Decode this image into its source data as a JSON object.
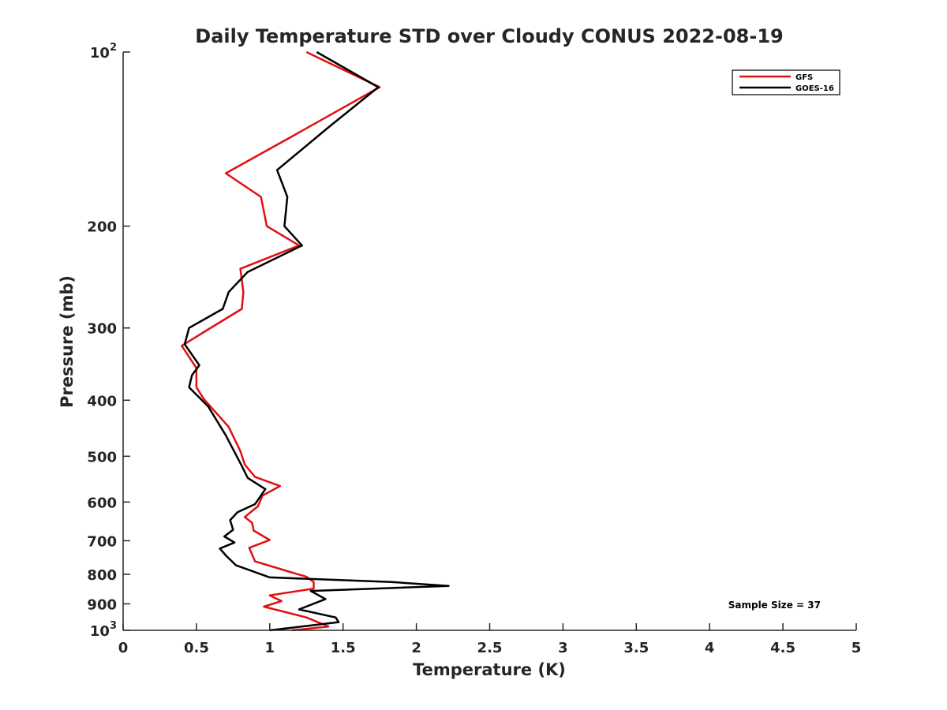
{
  "chart_data": {
    "type": "line",
    "title": "Daily Temperature STD over Cloudy CONUS 2022-08-19",
    "xlabel": "Temperature (K)",
    "ylabel": "Pressure (mb)",
    "xlim": [
      0,
      5
    ],
    "ylim": [
      100,
      1000
    ],
    "y_scale": "log",
    "y_reversed": true,
    "grid": false,
    "legend_position": "top-right",
    "x_ticks": [
      0,
      0.5,
      1,
      1.5,
      2,
      2.5,
      3,
      3.5,
      4,
      4.5,
      5
    ],
    "x_tick_labels": [
      "0",
      "0.5",
      "1",
      "1.5",
      "2",
      "2.5",
      "3",
      "3.5",
      "4",
      "4.5",
      "5"
    ],
    "y_ticks": [
      100,
      200,
      300,
      400,
      500,
      600,
      700,
      800,
      900,
      1000
    ],
    "y_tick_labels": [
      {
        "base": "10",
        "exp": "2"
      },
      {
        "base": "200",
        "exp": ""
      },
      {
        "base": "300",
        "exp": ""
      },
      {
        "base": "400",
        "exp": ""
      },
      {
        "base": "500",
        "exp": ""
      },
      {
        "base": "600",
        "exp": ""
      },
      {
        "base": "700",
        "exp": ""
      },
      {
        "base": "800",
        "exp": ""
      },
      {
        "base": "900",
        "exp": ""
      },
      {
        "base": "10",
        "exp": "3"
      }
    ],
    "series": [
      {
        "name": "GFS",
        "color": "#e01010",
        "points": [
          [
            1.25,
            100
          ],
          [
            1.75,
            115
          ],
          [
            1.15,
            140
          ],
          [
            0.7,
            162
          ],
          [
            0.94,
            178
          ],
          [
            0.98,
            200
          ],
          [
            1.2,
            216
          ],
          [
            0.8,
            237
          ],
          [
            0.82,
            260
          ],
          [
            0.81,
            278
          ],
          [
            0.55,
            305
          ],
          [
            0.4,
            322
          ],
          [
            0.5,
            352
          ],
          [
            0.5,
            380
          ],
          [
            0.55,
            398
          ],
          [
            0.72,
            445
          ],
          [
            0.8,
            490
          ],
          [
            0.83,
            517
          ],
          [
            0.9,
            543
          ],
          [
            1.07,
            563
          ],
          [
            0.95,
            585
          ],
          [
            0.92,
            610
          ],
          [
            0.83,
            637
          ],
          [
            0.88,
            652
          ],
          [
            0.89,
            672
          ],
          [
            1.0,
            698
          ],
          [
            0.86,
            720
          ],
          [
            0.9,
            760
          ],
          [
            1.12,
            790
          ],
          [
            1.25,
            808
          ],
          [
            1.3,
            825
          ],
          [
            1.3,
            847
          ],
          [
            1.0,
            870
          ],
          [
            1.08,
            890
          ],
          [
            0.96,
            910
          ],
          [
            1.25,
            950
          ],
          [
            1.4,
            985
          ],
          [
            1.15,
            1000
          ]
        ]
      },
      {
        "name": "GOES-16",
        "color": "#000000",
        "points": [
          [
            1.32,
            100
          ],
          [
            1.74,
            115
          ],
          [
            1.4,
            135
          ],
          [
            1.05,
            160
          ],
          [
            1.12,
            178
          ],
          [
            1.1,
            200
          ],
          [
            1.22,
            216
          ],
          [
            0.85,
            240
          ],
          [
            0.72,
            260
          ],
          [
            0.68,
            278
          ],
          [
            0.45,
            300
          ],
          [
            0.42,
            320
          ],
          [
            0.52,
            348
          ],
          [
            0.47,
            362
          ],
          [
            0.45,
            380
          ],
          [
            0.58,
            410
          ],
          [
            0.7,
            460
          ],
          [
            0.81,
            520
          ],
          [
            0.85,
            545
          ],
          [
            0.97,
            570
          ],
          [
            0.9,
            605
          ],
          [
            0.78,
            625
          ],
          [
            0.73,
            645
          ],
          [
            0.75,
            670
          ],
          [
            0.69,
            688
          ],
          [
            0.76,
            705
          ],
          [
            0.66,
            722
          ],
          [
            0.7,
            742
          ],
          [
            0.77,
            772
          ],
          [
            1.0,
            810
          ],
          [
            1.83,
            825
          ],
          [
            2.22,
            838
          ],
          [
            1.28,
            855
          ],
          [
            1.38,
            883
          ],
          [
            1.2,
            920
          ],
          [
            1.45,
            950
          ],
          [
            1.47,
            968
          ],
          [
            1.0,
            1000
          ]
        ]
      }
    ],
    "annotations": [
      {
        "text": "Sample Size = 37",
        "position": "lower-right"
      }
    ]
  }
}
